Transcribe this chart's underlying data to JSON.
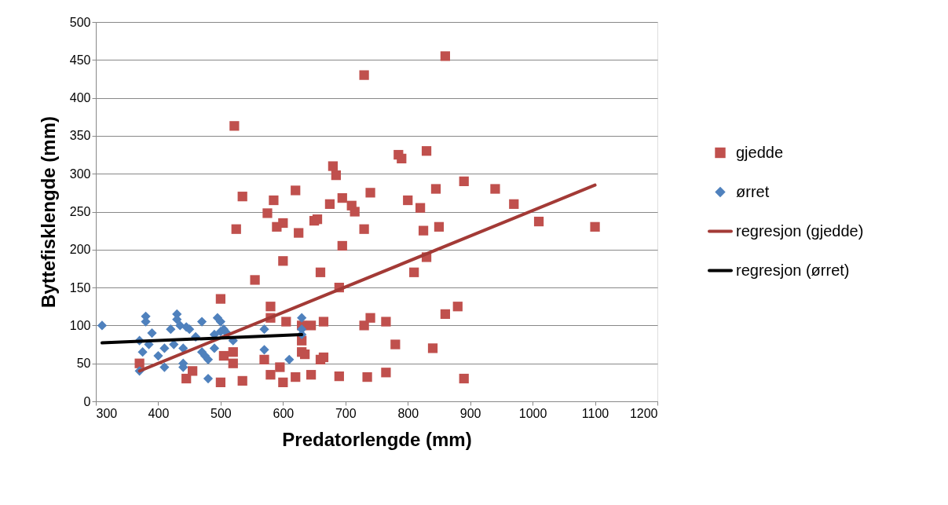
{
  "chart_data": {
    "type": "scatter",
    "xlabel": "Predatorlengde (mm)",
    "ylabel": "Byttefisklengde (mm)",
    "xlim": [
      300,
      1200
    ],
    "xticks": [
      300,
      400,
      500,
      600,
      700,
      800,
      900,
      1000,
      1100,
      1200
    ],
    "ylim": [
      0,
      500
    ],
    "yticks": [
      0,
      50,
      100,
      150,
      200,
      250,
      300,
      350,
      400,
      450,
      500
    ],
    "grid": "y",
    "legend": "right",
    "series": [
      {
        "name": "gjedde",
        "marker": "square",
        "color": "#c0504d",
        "x": [
          370,
          445,
          455,
          500,
          500,
          505,
          520,
          520,
          522,
          525,
          535,
          535,
          555,
          570,
          575,
          580,
          580,
          580,
          585,
          590,
          595,
          600,
          600,
          600,
          605,
          620,
          620,
          625,
          630,
          630,
          630,
          635,
          645,
          645,
          650,
          655,
          660,
          660,
          665,
          665,
          675,
          680,
          685,
          690,
          690,
          695,
          695,
          710,
          715,
          730,
          730,
          730,
          735,
          740,
          740,
          765,
          765,
          780,
          785,
          790,
          800,
          810,
          820,
          825,
          830,
          830,
          840,
          845,
          850,
          860,
          860,
          880,
          890,
          890,
          940,
          970,
          1010,
          1100
        ],
        "values": [
          50,
          30,
          40,
          135,
          25,
          60,
          65,
          50,
          363,
          227,
          270,
          27,
          160,
          55,
          248,
          125,
          110,
          35,
          265,
          230,
          45,
          185,
          235,
          25,
          105,
          278,
          32,
          222,
          100,
          80,
          65,
          62,
          100,
          35,
          238,
          240,
          170,
          55,
          105,
          58,
          260,
          310,
          298,
          150,
          33,
          205,
          268,
          258,
          250,
          430,
          227,
          100,
          32,
          110,
          275,
          105,
          38,
          75,
          325,
          320,
          265,
          170,
          255,
          225,
          330,
          190,
          70,
          280,
          230,
          455,
          115,
          125,
          290,
          30,
          280,
          260,
          237,
          230
        ]
      },
      {
        "name": "ørret",
        "marker": "diamond",
        "color": "#4f81bd",
        "x": [
          310,
          370,
          370,
          375,
          380,
          380,
          385,
          390,
          400,
          410,
          410,
          420,
          425,
          430,
          430,
          435,
          440,
          440,
          440,
          445,
          450,
          460,
          470,
          470,
          475,
          480,
          480,
          490,
          490,
          495,
          500,
          500,
          505,
          510,
          520,
          570,
          570,
          610,
          630,
          630,
          630
        ],
        "values": [
          100,
          40,
          80,
          65,
          112,
          105,
          75,
          90,
          60,
          45,
          70,
          95,
          75,
          115,
          108,
          100,
          70,
          50,
          45,
          98,
          95,
          85,
          105,
          65,
          60,
          30,
          55,
          70,
          88,
          110,
          92,
          105,
          95,
          90,
          80,
          95,
          68,
          55,
          110,
          95,
          88
        ]
      },
      {
        "name": "regresjon (gjedde)",
        "type": "line",
        "line_style": "solid",
        "color": "#a33a36",
        "x": [
          370,
          1100
        ],
        "values": [
          40,
          285
        ]
      },
      {
        "name": "regresjon (ørret)",
        "type": "line",
        "line_style": "solid",
        "color": "#000000",
        "x": [
          310,
          630
        ],
        "values": [
          77,
          88
        ]
      }
    ]
  }
}
